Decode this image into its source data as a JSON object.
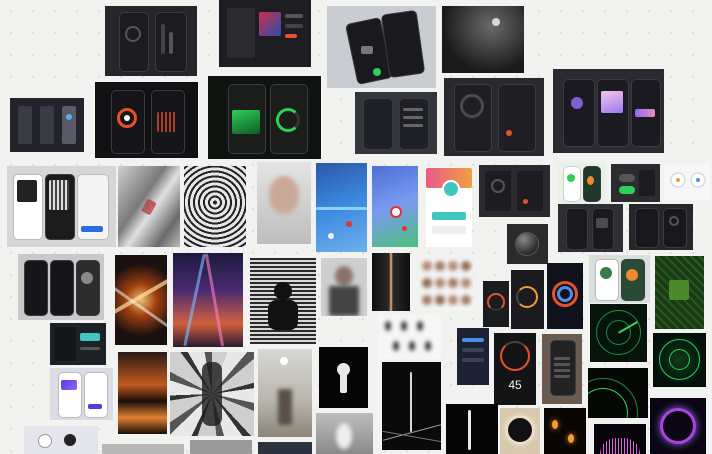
{
  "canvas": {
    "background": "#f2f2f0",
    "grid_dot_color": "#dcdcd8",
    "accent_colors": {
      "orange": "#e8502c",
      "green": "#2fd05a",
      "purple": "#8f6cf0",
      "teal": "#3fc6c0",
      "radar_green": "#1f8a3c"
    }
  },
  "screens": {
    "remote_app": {
      "value": "45"
    }
  }
}
